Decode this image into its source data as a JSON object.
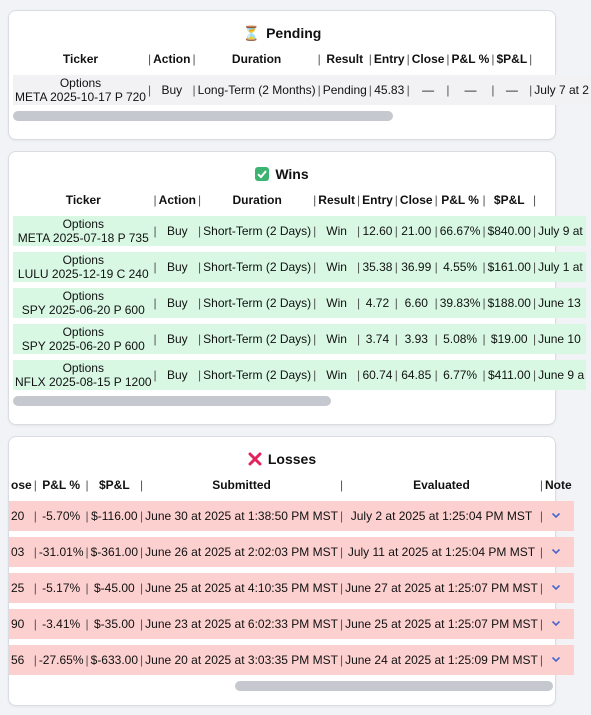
{
  "pending": {
    "icon": "hourglass-icon",
    "title": "Pending",
    "headers": [
      "Ticker",
      "Action",
      "Duration",
      "Result",
      "Entry",
      "Close",
      "P&L %",
      "$P&L",
      ""
    ],
    "rows": [
      {
        "ticker_type": "Options",
        "ticker": "META 2025-10-17 P 720",
        "action": "Buy",
        "duration": "Long-Term (2 Months)",
        "result": "Pending",
        "entry": "45.83",
        "close": "—",
        "pnl_pct": "—",
        "pnl": "—",
        "submitted": "July 7 at 2"
      }
    ]
  },
  "wins": {
    "icon": "check-box-icon",
    "title": "Wins",
    "headers": [
      "Ticker",
      "Action",
      "Duration",
      "Result",
      "Entry",
      "Close",
      "P&L %",
      "$P&L",
      ""
    ],
    "rows": [
      {
        "ticker_type": "Options",
        "ticker": "META 2025-07-18 P 735",
        "action": "Buy",
        "duration": "Short-Term (2 Days)",
        "result": "Win",
        "entry": "12.60",
        "close": "21.00",
        "pnl_pct": "66.67%",
        "pnl": "$840.00",
        "submitted": "July 9 at"
      },
      {
        "ticker_type": "Options",
        "ticker": "LULU 2025-12-19 C 240",
        "action": "Buy",
        "duration": "Short-Term (2 Days)",
        "result": "Win",
        "entry": "35.38",
        "close": "36.99",
        "pnl_pct": "4.55%",
        "pnl": "$161.00",
        "submitted": "July 1 at"
      },
      {
        "ticker_type": "Options",
        "ticker": "SPY 2025-06-20 P 600",
        "action": "Buy",
        "duration": "Short-Term (2 Days)",
        "result": "Win",
        "entry": "4.72",
        "close": "6.60",
        "pnl_pct": "39.83%",
        "pnl": "$188.00",
        "submitted": "June 13"
      },
      {
        "ticker_type": "Options",
        "ticker": "SPY 2025-06-20 P 600",
        "action": "Buy",
        "duration": "Short-Term (2 Days)",
        "result": "Win",
        "entry": "3.74",
        "close": "3.93",
        "pnl_pct": "5.08%",
        "pnl": "$19.00",
        "submitted": "June 10"
      },
      {
        "ticker_type": "Options",
        "ticker": "NFLX 2025-08-15 P 1200",
        "action": "Buy",
        "duration": "Short-Term (2 Days)",
        "result": "Win",
        "entry": "60.74",
        "close": "64.85",
        "pnl_pct": "6.77%",
        "pnl": "$411.00",
        "submitted": "June 9 a"
      }
    ]
  },
  "losses": {
    "icon": "red-x-icon",
    "title": "Losses",
    "headers": [
      "ose",
      "P&L %",
      "$P&L",
      "Submitted",
      "Evaluated",
      "Note"
    ],
    "rows": [
      {
        "close": "20",
        "pnl_pct": "-5.70%",
        "pnl": "$-116.00",
        "submitted": "June 30 at 2025 at 1:38:50 PM MST",
        "evaluated": "July 2 at 2025 at 1:25:04 PM MST"
      },
      {
        "close": "03",
        "pnl_pct": "-31.01%",
        "pnl": "$-361.00",
        "submitted": "June 26 at 2025 at 2:02:03 PM MST",
        "evaluated": "July 11 at 2025 at 1:25:04 PM MST"
      },
      {
        "close": "25",
        "pnl_pct": "-5.17%",
        "pnl": "$-45.00",
        "submitted": "June 25 at 2025 at 4:10:35 PM MST",
        "evaluated": "June 27 at 2025 at 1:25:07 PM MST"
      },
      {
        "close": "90",
        "pnl_pct": "-3.41%",
        "pnl": "$-35.00",
        "submitted": "June 23 at 2025 at 6:02:33 PM MST",
        "evaluated": "June 25 at 2025 at 1:25:07 PM MST"
      },
      {
        "close": "56",
        "pnl_pct": "-27.65%",
        "pnl": "$-633.00",
        "submitted": "June 20 at 2025 at 3:03:35 PM MST",
        "evaluated": "June 24 at 2025 at 1:25:09 PM MST"
      }
    ]
  },
  "colors": {
    "win_row": "#d8f8e4",
    "loss_row": "#fdd0d0",
    "pending_row": "#f2f2f4",
    "chevron": "#4a68c9"
  }
}
